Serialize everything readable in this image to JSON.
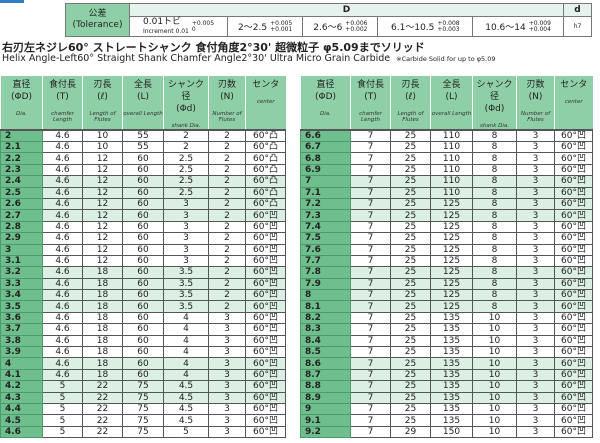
{
  "tolerance": {
    "label_jp": "公差",
    "label_en": "(Tolerance)",
    "D_header": "D",
    "d_header": "d",
    "cells": [
      {
        "range": "0.01トビ",
        "sub": "Increment 0.01",
        "upper": "+0.005",
        "lower": "0"
      },
      {
        "range": "2～2.5",
        "upper": "+0.005",
        "lower": "+0.001"
      },
      {
        "range": "2.6～6",
        "upper": "+0.006",
        "lower": "+0.002"
      },
      {
        "range": "6.1～10.5",
        "upper": "+0.008",
        "lower": "+0.003"
      },
      {
        "range": "10.6～14",
        "upper": "+0.009",
        "lower": "+0.004"
      }
    ],
    "d_value": "h7"
  },
  "title": "右刃左ネジレ60° ストレートシャンク 食付角度2°30' 超微粒子 φ5.09までソリッド",
  "subtitle": "Helix Angle-Left60°  Straight Shank  Chamfer Angle2°30'  Ultra Micro Grain Carbide",
  "note": "※Carbide Solid for up to φ5.09",
  "columns": [
    {
      "jp": "直径",
      "sym": "(ΦD)",
      "en": "Dia."
    },
    {
      "jp": "食付長",
      "sym": "(T)",
      "en": "chamfer Length"
    },
    {
      "jp": "刃長",
      "sym": "(ℓ)",
      "en": "Length of Flutes"
    },
    {
      "jp": "全長",
      "sym": "(L)",
      "en": "overall Length"
    },
    {
      "jp": "シャンク径",
      "sym": "(Φd)",
      "en": "shank Dia."
    },
    {
      "jp": "刃数",
      "sym": "(N)",
      "en": "Number of Flutes"
    },
    {
      "jp": "センタ",
      "sym": "",
      "en": "center"
    }
  ],
  "left_rows": [
    [
      "2",
      "4.6",
      "10",
      "55",
      "2",
      "2",
      "60°凸"
    ],
    [
      "2.1",
      "4.6",
      "10",
      "55",
      "2",
      "2",
      "60°凸"
    ],
    [
      "2.2",
      "4.6",
      "12",
      "60",
      "2.5",
      "2",
      "60°凸"
    ],
    [
      "2.3",
      "4.6",
      "12",
      "60",
      "2.5",
      "2",
      "60°凸"
    ],
    [
      "2.4",
      "4.6",
      "12",
      "60",
      "2.5",
      "2",
      "60°凸"
    ],
    [
      "2.5",
      "4.6",
      "12",
      "60",
      "2.5",
      "2",
      "60°凸"
    ],
    [
      "2.6",
      "4.6",
      "12",
      "60",
      "3",
      "2",
      "60°凸"
    ],
    [
      "2.7",
      "4.6",
      "12",
      "60",
      "3",
      "2",
      "60°凹"
    ],
    [
      "2.8",
      "4.6",
      "12",
      "60",
      "3",
      "2",
      "60°凹"
    ],
    [
      "2.9",
      "4.6",
      "12",
      "60",
      "3",
      "2",
      "60°凹"
    ],
    [
      "3",
      "4.6",
      "12",
      "60",
      "3",
      "2",
      "60°凹"
    ],
    [
      "3.1",
      "4.6",
      "12",
      "60",
      "3",
      "2",
      "60°凹"
    ],
    [
      "3.2",
      "4.6",
      "18",
      "60",
      "3.5",
      "2",
      "60°凹"
    ],
    [
      "3.3",
      "4.6",
      "18",
      "60",
      "3.5",
      "2",
      "60°凹"
    ],
    [
      "3.4",
      "4.6",
      "18",
      "60",
      "3.5",
      "2",
      "60°凹"
    ],
    [
      "3.5",
      "4.6",
      "18",
      "60",
      "3.5",
      "2",
      "60°凹"
    ],
    [
      "3.6",
      "4.6",
      "18",
      "60",
      "4",
      "3",
      "60°凹"
    ],
    [
      "3.7",
      "4.6",
      "18",
      "60",
      "4",
      "3",
      "60°凹"
    ],
    [
      "3.8",
      "4.6",
      "18",
      "60",
      "4",
      "3",
      "60°凹"
    ],
    [
      "3.9",
      "4.6",
      "18",
      "60",
      "4",
      "3",
      "60°凹"
    ],
    [
      "4",
      "4.6",
      "18",
      "60",
      "4",
      "3",
      "60°凹"
    ],
    [
      "4.1",
      "4.6",
      "18",
      "60",
      "4",
      "3",
      "60°凹"
    ],
    [
      "4.2",
      "5",
      "22",
      "75",
      "4.5",
      "3",
      "60°凹"
    ],
    [
      "4.3",
      "5",
      "22",
      "75",
      "4.5",
      "3",
      "60°凹"
    ],
    [
      "4.4",
      "5",
      "22",
      "75",
      "4.5",
      "3",
      "60°凹"
    ],
    [
      "4.5",
      "5",
      "22",
      "75",
      "4.5",
      "3",
      "60°凹"
    ],
    [
      "4.6",
      "5",
      "22",
      "75",
      "5",
      "3",
      "60°凹"
    ]
  ],
  "right_rows": [
    [
      "6.6",
      "7",
      "25",
      "110",
      "8",
      "3",
      "60°凹"
    ],
    [
      "6.7",
      "7",
      "25",
      "110",
      "8",
      "3",
      "60°凹"
    ],
    [
      "6.8",
      "7",
      "25",
      "110",
      "8",
      "3",
      "60°凹"
    ],
    [
      "6.9",
      "7",
      "25",
      "110",
      "8",
      "3",
      "60°凹"
    ],
    [
      "7",
      "7",
      "25",
      "110",
      "8",
      "3",
      "60°凹"
    ],
    [
      "7.1",
      "7",
      "25",
      "110",
      "8",
      "3",
      "60°凹"
    ],
    [
      "7.2",
      "7",
      "25",
      "125",
      "8",
      "3",
      "60°凹"
    ],
    [
      "7.3",
      "7",
      "25",
      "125",
      "8",
      "3",
      "60°凹"
    ],
    [
      "7.4",
      "7",
      "25",
      "125",
      "8",
      "3",
      "60°凹"
    ],
    [
      "7.5",
      "7",
      "25",
      "125",
      "8",
      "3",
      "60°凹"
    ],
    [
      "7.6",
      "7",
      "25",
      "125",
      "8",
      "3",
      "60°凹"
    ],
    [
      "7.7",
      "7",
      "25",
      "125",
      "8",
      "3",
      "60°凹"
    ],
    [
      "7.8",
      "7",
      "25",
      "125",
      "8",
      "3",
      "60°凹"
    ],
    [
      "7.9",
      "7",
      "25",
      "125",
      "8",
      "3",
      "60°凹"
    ],
    [
      "8",
      "7",
      "25",
      "125",
      "8",
      "3",
      "60°凹"
    ],
    [
      "8.1",
      "7",
      "25",
      "125",
      "8",
      "3",
      "60°凹"
    ],
    [
      "8.2",
      "7",
      "25",
      "135",
      "10",
      "3",
      "60°凹"
    ],
    [
      "8.3",
      "7",
      "25",
      "135",
      "10",
      "3",
      "60°凹"
    ],
    [
      "8.4",
      "7",
      "25",
      "135",
      "10",
      "3",
      "60°凹"
    ],
    [
      "8.5",
      "7",
      "25",
      "135",
      "10",
      "3",
      "60°凹"
    ],
    [
      "8.6",
      "7",
      "25",
      "135",
      "10",
      "3",
      "60°凹"
    ],
    [
      "8.7",
      "7",
      "25",
      "135",
      "10",
      "3",
      "60°凹"
    ],
    [
      "8.8",
      "7",
      "25",
      "135",
      "10",
      "3",
      "60°凹"
    ],
    [
      "8.9",
      "7",
      "25",
      "135",
      "10",
      "3",
      "60°凹"
    ],
    [
      "9",
      "7",
      "25",
      "135",
      "10",
      "3",
      "60°凹"
    ],
    [
      "9.1",
      "7",
      "25",
      "135",
      "10",
      "3",
      "60°凹"
    ],
    [
      "9.2",
      "7",
      "29",
      "150",
      "10",
      "3",
      "60°凹"
    ]
  ]
}
